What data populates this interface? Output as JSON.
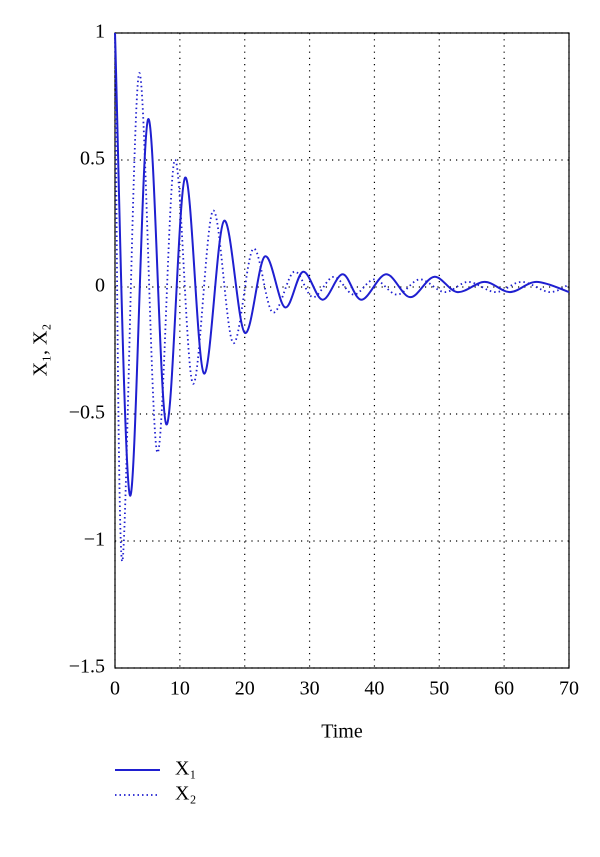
{
  "chart_data": {
    "type": "line",
    "xlabel": "Time",
    "ylabel": "X₁, X₂",
    "xlim": [
      0,
      70
    ],
    "ylim": [
      -1.5,
      1
    ],
    "xticks": [
      0,
      10,
      20,
      30,
      40,
      50,
      60,
      70
    ],
    "yticks": [
      1,
      0.5,
      0,
      {
        "value": -0.5,
        "label": "−0.5"
      },
      {
        "value": -1,
        "label": "−1"
      },
      {
        "value": -1.5,
        "label": "−1.5"
      }
    ],
    "grid": true,
    "series": [
      {
        "name": "X₁",
        "color": "#1f1fd0",
        "style": "solid",
        "x": [
          0,
          2.3,
          5.1,
          7.9,
          10.8,
          13.7,
          16.8,
          20,
          23.1,
          26.2,
          29,
          32,
          35.1,
          38,
          41.8,
          45.5,
          49.2,
          52.8,
          57,
          60.9,
          65,
          70
        ],
        "values": [
          1,
          -0.82,
          0.66,
          -0.54,
          0.43,
          -0.34,
          0.26,
          -0.18,
          0.12,
          -0.08,
          0.06,
          -0.05,
          0.05,
          -0.05,
          0.05,
          -0.04,
          0.04,
          -0.02,
          0.02,
          -0.02,
          0.02,
          -0.02
        ]
      },
      {
        "name": "X₂",
        "color": "#1f1fd0",
        "style": "dotted",
        "x": [
          0,
          1.1,
          3.7,
          6.5,
          9.2,
          12,
          15.1,
          18.2,
          21.3,
          24.3,
          27.6,
          30.5,
          33.7,
          36.8,
          40,
          43.5,
          47,
          50.8,
          54.5,
          58.7,
          62.7,
          67,
          70
        ],
        "values": [
          1,
          -1.08,
          0.84,
          -0.65,
          0.5,
          -0.38,
          0.3,
          -0.22,
          0.15,
          -0.1,
          0.06,
          -0.04,
          0.04,
          -0.03,
          0.03,
          -0.03,
          0.03,
          -0.02,
          0.02,
          -0.02,
          0.02,
          -0.02,
          0.01
        ]
      }
    ]
  }
}
